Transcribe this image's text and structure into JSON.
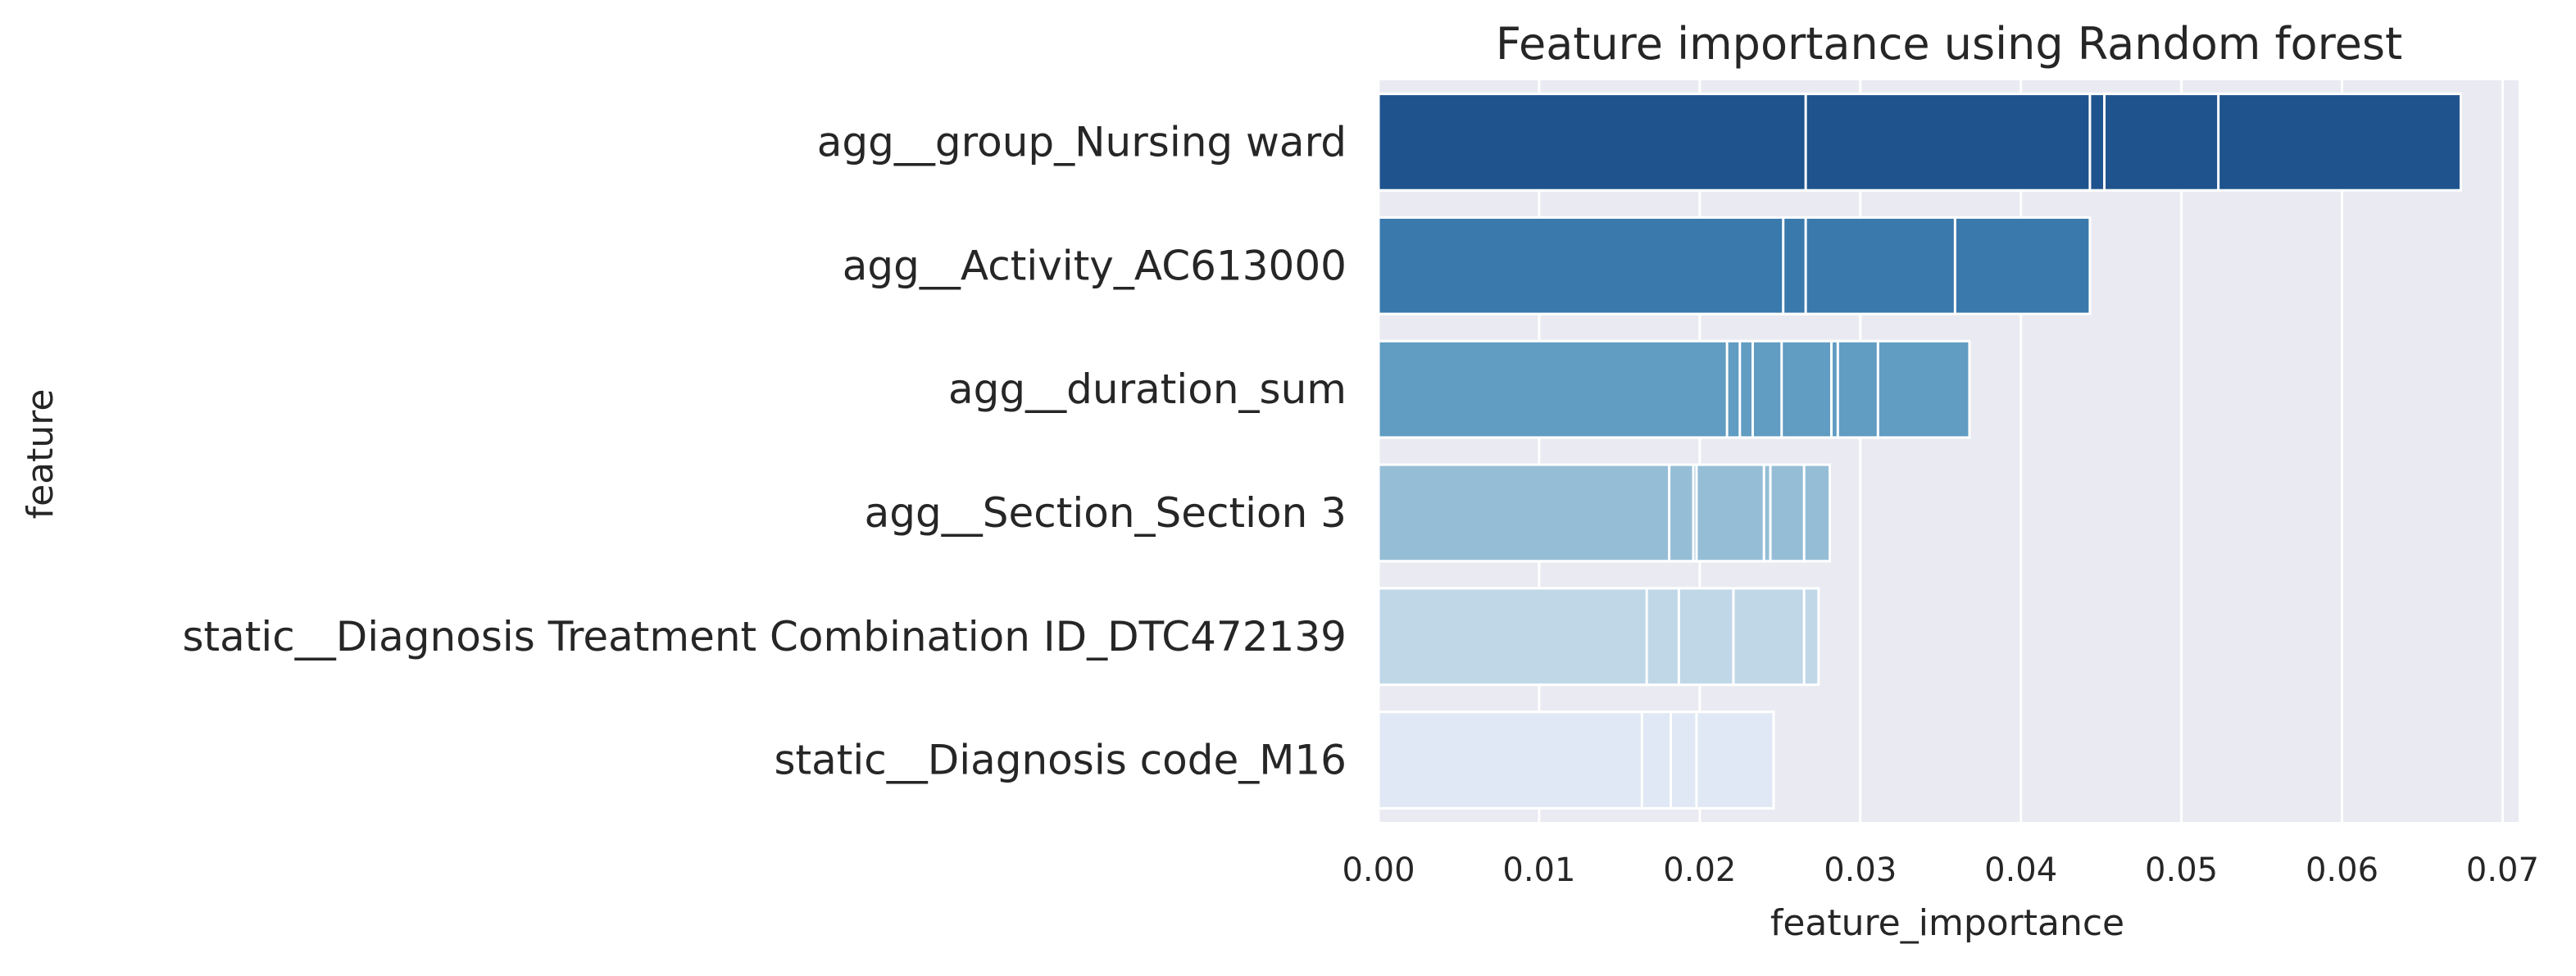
{
  "chart_data": {
    "type": "bar",
    "orientation": "horizontal",
    "title": "Feature importance using Random forest",
    "xlabel": "feature_importance",
    "ylabel": "feature",
    "xlim": [
      0,
      0.071
    ],
    "xticks": [
      0.0,
      0.01,
      0.02,
      0.03,
      0.04,
      0.05,
      0.06,
      0.07
    ],
    "xtick_labels": [
      "0.00",
      "0.01",
      "0.02",
      "0.03",
      "0.04",
      "0.05",
      "0.06",
      "0.07"
    ],
    "grid": true,
    "categories": [
      "agg__group_Nursing ward",
      "agg__Activity_AC613000",
      "agg__duration_sum",
      "agg__Section_Section 3",
      "static__Diagnosis Treatment Combination ID_DTC472139",
      "static__Diagnosis code_M16"
    ],
    "overlapping_values": [
      [
        0.0674,
        0.0523,
        0.0452,
        0.0443,
        0.0266
      ],
      [
        0.0443,
        0.0359,
        0.0266,
        0.0252
      ],
      [
        0.0368,
        0.0311,
        0.0286,
        0.0282,
        0.0251,
        0.0233,
        0.0225,
        0.0217
      ],
      [
        0.0281,
        0.0265,
        0.0244,
        0.024,
        0.0198,
        0.0196,
        0.0181
      ],
      [
        0.0274,
        0.0265,
        0.0221,
        0.0187,
        0.0167
      ],
      [
        0.0246,
        0.0198,
        0.0182,
        0.0164
      ]
    ],
    "colors": [
      "#1f538d",
      "#3a79ac",
      "#619cc2",
      "#95bdd6",
      "#c0d7e8",
      "#dfe8f4"
    ],
    "background_color": "#eaeaf2",
    "grid_color": "#ffffff"
  }
}
